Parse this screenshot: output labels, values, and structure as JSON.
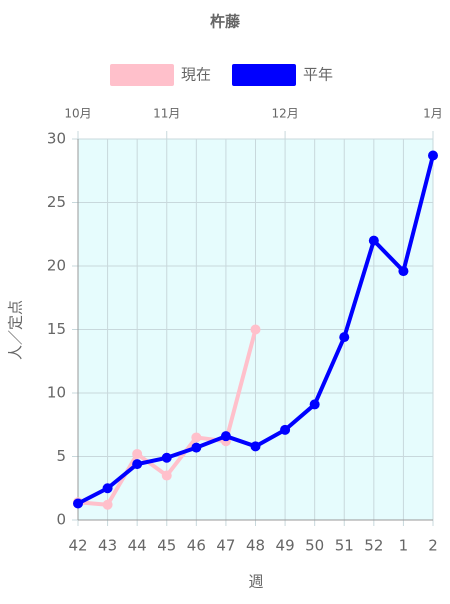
{
  "chart_data": {
    "type": "line",
    "title": "杵藤",
    "categories": [
      "42",
      "43",
      "44",
      "45",
      "46",
      "47",
      "48",
      "49",
      "50",
      "51",
      "52",
      "1",
      "2"
    ],
    "series": [
      {
        "name": "現在",
        "color": "#ffc0cb",
        "values": [
          1.4,
          1.2,
          5.2,
          3.5,
          6.5,
          6.2,
          15.0,
          null,
          null,
          null,
          null,
          null,
          null
        ]
      },
      {
        "name": "平年",
        "color": "#0000ff",
        "values": [
          1.3,
          2.5,
          4.4,
          4.9,
          5.7,
          6.6,
          5.8,
          7.1,
          9.1,
          14.4,
          22.0,
          19.6,
          28.7
        ]
      }
    ],
    "x2ticks": [
      {
        "value": 0,
        "label": "10月"
      },
      {
        "value": 3,
        "label": "11月"
      },
      {
        "value": 7,
        "label": "12月"
      },
      {
        "value": 12,
        "label": "1月"
      }
    ],
    "ylim": [
      0,
      30
    ],
    "yticks": [
      0,
      5,
      10,
      15,
      20,
      25,
      30
    ],
    "ylabel": "人／定点",
    "xlabel": "週",
    "grid": true,
    "legend": "top"
  }
}
